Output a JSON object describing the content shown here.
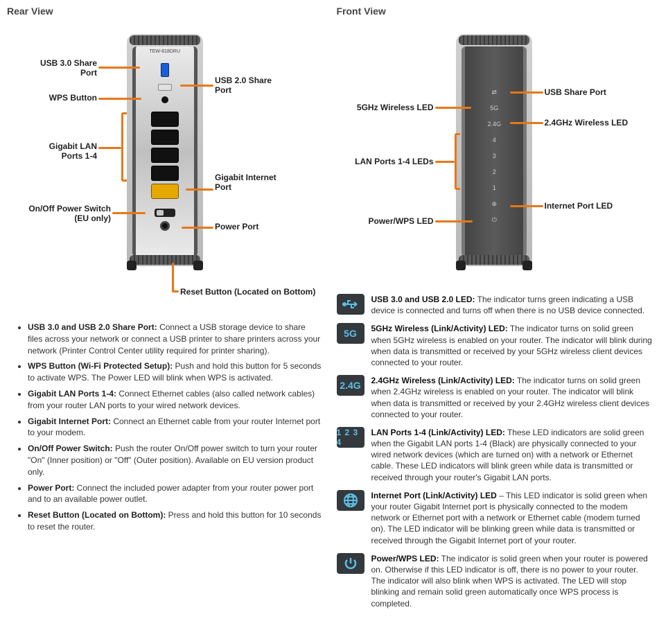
{
  "colors": {
    "callout_line": "#e67817",
    "icon_bg": "#33393d",
    "icon_fg": "#5dc0e8"
  },
  "rear": {
    "title": "Rear View",
    "model": "TEW-818DRU",
    "callouts": {
      "usb3": "USB 3.0 Share\nPort",
      "usb2": "USB 2.0 Share\nPort",
      "wps": "WPS Button",
      "lan": "Gigabit LAN\nPorts 1-4",
      "wan": "Gigabit Internet\nPort",
      "switch": "On/Off Power Switch\n(EU only)",
      "power": "Power Port",
      "reset": "Reset Button (Located on Bottom)"
    },
    "bullets": [
      {
        "b": "USB 3.0 and USB 2.0 Share Port:",
        "t": " Connect a USB storage device to share files across your network or connect a USB printer to share printers across your network (Printer Control Center utility required for printer sharing)."
      },
      {
        "b": "WPS Button (Wi-Fi Protected Setup):",
        "t": " Push and hold this button for 5 seconds to activate WPS. The Power LED will blink when WPS is activated."
      },
      {
        "b": "Gigabit LAN Ports 1-4:",
        "t": " Connect Ethernet cables (also called network cables) from your router LAN ports to your wired network devices."
      },
      {
        "b": "Gigabit Internet Port:",
        "t": " Connect an Ethernet cable from your router Internet port to your modem."
      },
      {
        "b": "On/Off Power Switch:",
        "t": " Push the router On/Off power switch to turn your router \"On\" (Inner position) or \"Off\" (Outer position). Available on EU version product only."
      },
      {
        "b": "Power Port:",
        "t": " Connect the included power adapter from your router power port and to an available power outlet."
      },
      {
        "b": "Reset Button (Located on Bottom):",
        "t": " Press and hold this button for 10 seconds to reset the router."
      }
    ]
  },
  "front": {
    "title": "Front View",
    "leds": [
      "⇄",
      "5G",
      "2.4G",
      "4",
      "3",
      "2",
      "1",
      "⊕",
      "⏻"
    ],
    "callouts": {
      "usb": "USB Share Port",
      "g5": "5GHz Wireless LED",
      "g24": "2.4GHz Wireless LED",
      "lan": "LAN Ports 1-4 LEDs",
      "net": "Internet Port LED",
      "pwr": "Power/WPS LED"
    },
    "items": [
      {
        "icon": "usb",
        "b": "USB 3.0 and USB 2.0 LED:",
        "t": " The indicator turns green indicating a USB device is connected and turns off when there is no USB device connected."
      },
      {
        "icon": "5G",
        "b": "5GHz Wireless (Link/Activity) LED:",
        "t": " The indicator turns on solid green when 5GHz wireless is enabled on your router. The indicator will blink during when data is transmitted or received by your 5GHz wireless client devices connected to your router."
      },
      {
        "icon": "2.4G",
        "b": "2.4GHz Wireless (Link/Activity) LED:",
        "t": " The indicator turns on solid green when 2.4GHz wireless is enabled on your router. The indicator will blink when data is transmitted or received by your 2.4GHz wireless client devices connected to your router."
      },
      {
        "icon": "1234",
        "b": "LAN Ports 1-4 (Link/Activity) LED:",
        "t": " These LED indicators are solid green when the Gigabit LAN ports 1-4 (Black) are physically connected to your wired network devices (which are turned on) with a network or Ethernet cable. These LED indicators will blink green while data is transmitted or received through your router's Gigabit LAN ports."
      },
      {
        "icon": "globe",
        "b": "Internet Port (Link/Activity) LED",
        "t": " – This LED indicator is solid green when your router Gigabit Internet port is physically connected to the modem network or Ethernet port with a network or Ethernet cable (modem turned on). The LED indicator will be blinking green while data is transmitted or received through the Gigabit Internet port of your router."
      },
      {
        "icon": "power",
        "b": "Power/WPS LED:",
        "t": " The indicator is solid green when your router is powered on. Otherwise if this LED indicator is off, there is no power to your router. The indicator will also blink when WPS is activated. The LED will stop blinking and remain solid green automatically once WPS process is completed."
      }
    ]
  }
}
